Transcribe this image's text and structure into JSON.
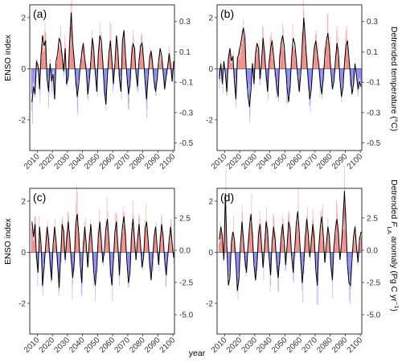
{
  "figure": {
    "shared_xlabel": "year",
    "left_ylabel": "ENSO index",
    "right_ylabel_top": "Detrended temperature (°C)",
    "right_ylabel_bottom_prefix": "Detrended ",
    "right_ylabel_bottom_symbol": "F",
    "right_ylabel_bottom_subscript": "LA",
    "right_ylabel_bottom_suffix": " anomaly (Pg C yr",
    "right_ylabel_bottom_sup": "−1",
    "right_ylabel_bottom_close": ")"
  },
  "colors": {
    "positive_bar": "#f08080",
    "negative_bar": "#7f7fff",
    "line": "#000000",
    "frame": "#000000",
    "zero_line": "#000000"
  },
  "chart_data": [
    {
      "type": "bar",
      "panel_label": "(a)",
      "x_ticks": [
        2010,
        2020,
        2030,
        2040,
        2050,
        2060,
        2070,
        2080,
        2090,
        2100
      ],
      "x_range": [
        2005,
        2101
      ],
      "left_axis": {
        "label": "ENSO index",
        "range": [
          -3.2,
          2.5
        ],
        "ticks": [
          -2,
          0,
          2
        ]
      },
      "right_axis": {
        "label": "",
        "range": [
          -0.55,
          0.41
        ],
        "ticks": [
          "-0.5",
          "-0.3",
          "-0.1",
          "0.1",
          "0.3"
        ]
      },
      "series": [
        {
          "values": [
            -1.3,
            -0.7,
            -1.0,
            0.3,
            0.1,
            -0.8,
            0.5,
            1.3,
            0.9,
            1.1,
            -0.4,
            -0.9,
            0.2,
            -0.5,
            -0.2,
            -1.2,
            0.3,
            0.6,
            1.2,
            1.0,
            0.5,
            -0.1,
            0.8,
            -0.6,
            -0.3,
            1.1,
            2.2,
            1.0,
            0.3,
            -0.4,
            -1.1,
            -0.6,
            0.1,
            0.6,
            1.0,
            0.4,
            -0.1,
            -1.0,
            -0.5,
            0.3,
            1.2,
            0.7,
            -0.2,
            -0.9,
            0.6,
            1.3,
            1.1,
            0.2,
            -0.8,
            -1.4,
            -0.3,
            0.6,
            1.1,
            0.3,
            -0.6,
            0.2,
            1.3,
            0.7,
            -0.4,
            -0.9,
            1.1,
            1.5,
            0.5,
            -0.3,
            -1.0,
            -0.6,
            0.5,
            1.0,
            0.8,
            -0.2,
            -0.7,
            0.3,
            0.9,
            1.0,
            0.4,
            -0.5,
            -1.2,
            -0.3,
            0.4,
            0.7,
            0.2,
            -0.5,
            -0.9,
            -0.4,
            0.3,
            0.8,
            0.5,
            -0.1,
            -0.8,
            -0.3,
            0.1,
            0.6,
            0.1,
            -0.5,
            0.3
          ]
        }
      ]
    },
    {
      "type": "bar",
      "panel_label": "(b)",
      "x_ticks": [
        2010,
        2020,
        2030,
        2040,
        2050,
        2060,
        2070,
        2080,
        2090,
        2100
      ],
      "x_range": [
        2005,
        2101
      ],
      "left_axis": {
        "label": "",
        "range": [
          -3.2,
          2.5
        ],
        "ticks": [
          -2,
          0,
          2
        ]
      },
      "right_axis": {
        "label": "Detrended temperature (°C)",
        "range": [
          -0.55,
          0.41
        ],
        "ticks": [
          "-0.5",
          "-0.3",
          "-0.1",
          "0.1",
          "0.3"
        ]
      },
      "series": [
        {
          "values": [
            -0.4,
            0.2,
            -0.6,
            0.3,
            -0.2,
            -0.9,
            0.4,
            0.8,
            0.3,
            0.5,
            -0.5,
            -1.2,
            0.4,
            0.6,
            0.9,
            1.3,
            1.6,
            1.1,
            -0.3,
            -1.0,
            -1.5,
            -0.8,
            0.2,
            -0.6,
            0.6,
            1.0,
            0.8,
            -0.4,
            0.3,
            1.2,
            0.6,
            -0.2,
            -0.9,
            0.2,
            0.8,
            1.1,
            0.5,
            -0.1,
            -0.7,
            -1.1,
            0.4,
            1.0,
            1.3,
            0.9,
            0.1,
            -0.8,
            -1.3,
            -0.6,
            0.5,
            1.2,
            1.0,
            0.4,
            -0.3,
            -0.9,
            -0.2,
            0.9,
            2.0,
            1.2,
            0.3,
            -0.5,
            -1.2,
            -0.8,
            0.1,
            0.8,
            1.1,
            0.6,
            0.1,
            -0.6,
            -1.0,
            -0.3,
            0.5,
            1.1,
            1.4,
            0.8,
            -0.1,
            -0.8,
            -0.5,
            0.3,
            1.0,
            0.6,
            -0.4,
            -1.1,
            -0.7,
            0.2,
            0.9,
            1.1,
            0.4,
            -0.3,
            -1.0,
            -0.6,
            0.2,
            -0.3,
            -0.8,
            -0.5,
            -0.7
          ]
        }
      ]
    },
    {
      "type": "bar",
      "panel_label": "(c)",
      "x_ticks": [
        2010,
        2020,
        2030,
        2040,
        2050,
        2060,
        2070,
        2080,
        2090,
        2100
      ],
      "x_range": [
        2005,
        2101
      ],
      "left_axis": {
        "label": "ENSO index",
        "range": [
          -3.2,
          2.5
        ],
        "ticks": [
          -2,
          0,
          2
        ]
      },
      "right_axis": {
        "label": "",
        "range": [
          -6.5,
          4.8
        ],
        "ticks": [
          "-5.0",
          "-2.5",
          "0.0",
          "2.5"
        ]
      },
      "series": [
        {
          "values": [
            1.2,
            0.6,
            1.1,
            -0.2,
            -0.8,
            1.0,
            0.3,
            -1.3,
            -0.6,
            0.2,
            1.0,
            0.5,
            -0.4,
            -1.1,
            0.3,
            1.0,
            0.4,
            -0.5,
            -1.4,
            -0.2,
            1.1,
            0.8,
            -0.3,
            0.5,
            1.2,
            0.6,
            -0.3,
            -1.0,
            -0.4,
            1.1,
            1.5,
            0.7,
            -0.5,
            -1.2,
            0.2,
            1.0,
            0.3,
            -0.6,
            0.4,
            1.1,
            0.2,
            -0.8,
            -1.3,
            -0.5,
            0.6,
            1.2,
            0.4,
            -0.4,
            0.1,
            0.9,
            1.3,
            0.5,
            -0.7,
            -1.3,
            -0.3,
            0.8,
            1.2,
            0.2,
            -0.9,
            0.3,
            1.0,
            1.4,
            0.6,
            -0.4,
            -1.2,
            -0.8,
            0.7,
            1.3,
            0.5,
            -0.3,
            0.5,
            1.1,
            0.3,
            -0.6,
            -0.2,
            0.9,
            1.2,
            0.5,
            -0.4,
            -1.1,
            -0.3,
            0.6,
            1.0,
            0.2,
            -0.5,
            0.4,
            1.1,
            0.6,
            -0.3,
            -0.9,
            -0.2,
            0.5,
            1.0,
            0.3,
            -0.2
          ]
        }
      ]
    },
    {
      "type": "bar",
      "panel_label": "(d)",
      "x_ticks": [
        2010,
        2020,
        2030,
        2040,
        2050,
        2060,
        2070,
        2080,
        2090,
        2100
      ],
      "x_range": [
        2005,
        2101
      ],
      "left_axis": {
        "label": "",
        "range": [
          -3.2,
          2.5
        ],
        "ticks": [
          -2,
          0,
          2
        ]
      },
      "right_axis": {
        "label": "Detrended FLA anomaly",
        "range": [
          -6.5,
          4.8
        ],
        "ticks": [
          "-5.0",
          "-2.5",
          "0.0",
          "2.5"
        ]
      },
      "series": [
        {
          "values": [
            0.5,
            1.0,
            0.6,
            -0.3,
            2.3,
            0.2,
            -1.3,
            -1.0,
            0.4,
            0.8,
            0.5,
            -0.4,
            -1.5,
            -1.0,
            0.3,
            1.2,
            0.5,
            -0.3,
            -0.8,
            0.2,
            1.0,
            1.5,
            0.6,
            -0.5,
            -1.1,
            -0.4,
            0.7,
            1.1,
            0.3,
            -0.6,
            0.2,
            1.2,
            0.8,
            -0.2,
            -0.9,
            0.4,
            1.0,
            0.5,
            -0.4,
            -1.0,
            -0.3,
            0.6,
            1.1,
            0.4,
            -0.5,
            0.3,
            1.2,
            0.9,
            -0.2,
            -0.8,
            0.1,
            1.1,
            1.6,
            0.8,
            -0.3,
            -1.2,
            -0.5,
            0.6,
            1.3,
            0.7,
            -0.2,
            0.4,
            1.1,
            0.5,
            -0.7,
            -1.3,
            0.2,
            1.0,
            1.4,
            0.6,
            -0.4,
            0.3,
            1.0,
            0.6,
            -0.5,
            -1.1,
            0.2,
            0.9,
            1.3,
            0.7,
            -0.3,
            0.3,
            1.2,
            2.4,
            1.1,
            -0.5,
            -1.2,
            -1.3,
            -0.3,
            0.6,
            1.0,
            0.2,
            -0.4,
            0.5,
            0.8
          ]
        }
      ]
    }
  ]
}
